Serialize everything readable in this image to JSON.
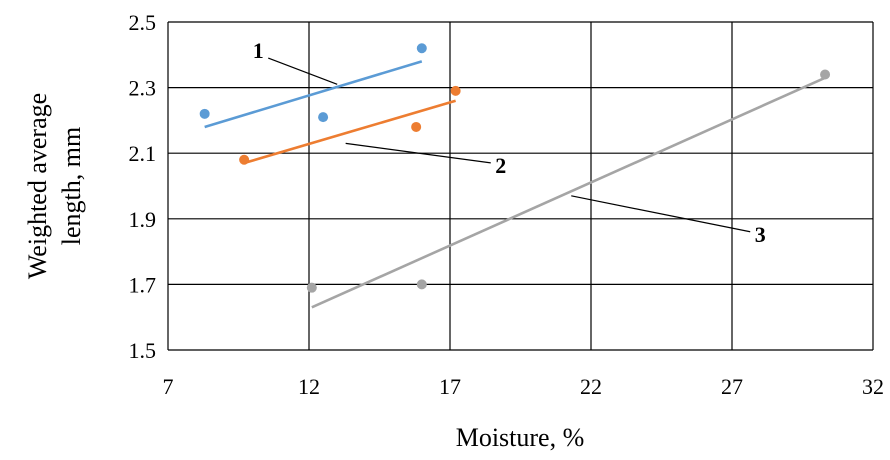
{
  "chart_data": {
    "type": "scatter",
    "title": "",
    "xlabel": "Moisture, %",
    "ylabel_lines": [
      "Weighted  average",
      "length, mm"
    ],
    "xlim": [
      7,
      32
    ],
    "ylim": [
      1.5,
      2.5
    ],
    "xticks": [
      7,
      12,
      17,
      22,
      27,
      32
    ],
    "yticks": [
      1.5,
      1.7,
      1.9,
      2.1,
      2.3,
      2.5
    ],
    "xtick_labels": [
      "7",
      "12",
      "17",
      "22",
      "27",
      "32"
    ],
    "ytick_labels": [
      "1.5",
      "1.7",
      "1.9",
      "2.1",
      "2.3",
      "2.5"
    ],
    "grid": true,
    "legend": "none",
    "series": [
      {
        "label": "1",
        "color": "#5b9bd5",
        "points": [
          [
            8.3,
            2.22
          ],
          [
            12.5,
            2.21
          ],
          [
            16.0,
            2.42
          ]
        ],
        "trendline": [
          [
            8.3,
            2.18
          ],
          [
            16.0,
            2.38
          ]
        ],
        "label_pos": [
          10.2,
          2.39
        ],
        "leader_end": [
          13.0,
          2.31
        ]
      },
      {
        "label": "2",
        "color": "#ed7d31",
        "points": [
          [
            9.7,
            2.08
          ],
          [
            15.8,
            2.18
          ],
          [
            17.2,
            2.29
          ]
        ],
        "trendline": [
          [
            9.7,
            2.07
          ],
          [
            17.2,
            2.26
          ]
        ],
        "label_pos": [
          18.8,
          2.04
        ],
        "leader_end": [
          13.3,
          2.13
        ]
      },
      {
        "label": "3",
        "color": "#a5a5a5",
        "points": [
          [
            12.1,
            1.69
          ],
          [
            16.0,
            1.7
          ],
          [
            30.3,
            2.34
          ]
        ],
        "trendline": [
          [
            12.1,
            1.63
          ],
          [
            30.3,
            2.33
          ]
        ],
        "label_pos": [
          28.0,
          1.83
        ],
        "leader_end": [
          21.3,
          1.97
        ]
      }
    ]
  }
}
